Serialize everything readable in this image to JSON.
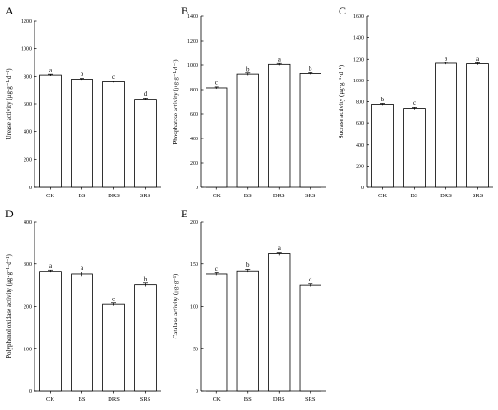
{
  "chart_data": [
    {
      "panel": "A",
      "type": "bar",
      "categories": [
        "CK",
        "BS",
        "DRS",
        "SRS"
      ],
      "values": [
        808,
        780,
        760,
        635
      ],
      "errors": [
        6,
        5,
        5,
        8
      ],
      "significance": [
        "a",
        "b",
        "c",
        "d"
      ],
      "ylabel": "Urease activity (μg·g⁻¹·d⁻¹)",
      "ylim": [
        0,
        1200
      ],
      "yticks": [
        0,
        200,
        400,
        600,
        800,
        1000,
        1200
      ]
    },
    {
      "panel": "B",
      "type": "bar",
      "categories": [
        "CK",
        "BS",
        "DRS",
        "SRS"
      ],
      "values": [
        815,
        925,
        1005,
        930
      ],
      "errors": [
        8,
        10,
        8,
        7
      ],
      "significance": [
        "c",
        "b",
        "a",
        "b"
      ],
      "ylabel": "Phosphatase activity (μg·g⁻¹·d⁻¹)",
      "ylim": [
        0,
        1400
      ],
      "yticks": [
        0,
        200,
        400,
        600,
        800,
        1000,
        1200,
        1400
      ]
    },
    {
      "panel": "C",
      "type": "bar",
      "categories": [
        "CK",
        "BS",
        "DRS",
        "SRS"
      ],
      "values": [
        775,
        740,
        1160,
        1155
      ],
      "errors": [
        8,
        10,
        10,
        10
      ],
      "significance": [
        "b",
        "c",
        "a",
        "a"
      ],
      "ylabel": "Sucrase activity (μg·g⁻¹·d⁻¹)",
      "ylim": [
        0,
        1600
      ],
      "yticks": [
        0,
        200,
        400,
        600,
        800,
        1000,
        1200,
        1400,
        1600
      ]
    },
    {
      "panel": "D",
      "type": "bar",
      "categories": [
        "CK",
        "BS",
        "DRS",
        "SRS"
      ],
      "values": [
        283,
        276,
        205,
        251
      ],
      "errors": [
        3,
        5,
        3,
        4
      ],
      "significance": [
        "a",
        "a",
        "c",
        "b"
      ],
      "ylabel": "Polyphenol oxidase activity (μg·g⁻¹·d⁻¹)",
      "ylim": [
        0,
        400
      ],
      "yticks": [
        0,
        100,
        200,
        300,
        400
      ]
    },
    {
      "panel": "E",
      "type": "bar",
      "categories": [
        "CK",
        "BS",
        "DRS",
        "SRS"
      ],
      "values": [
        138,
        142,
        162,
        125
      ],
      "errors": [
        1.5,
        2,
        2,
        1.5
      ],
      "significance": [
        "c",
        "b",
        "a",
        "d"
      ],
      "ylabel": "Catalase activity (μg·g⁻¹)",
      "ylim": [
        0,
        200
      ],
      "yticks": [
        0,
        50,
        100,
        150,
        200
      ]
    }
  ]
}
